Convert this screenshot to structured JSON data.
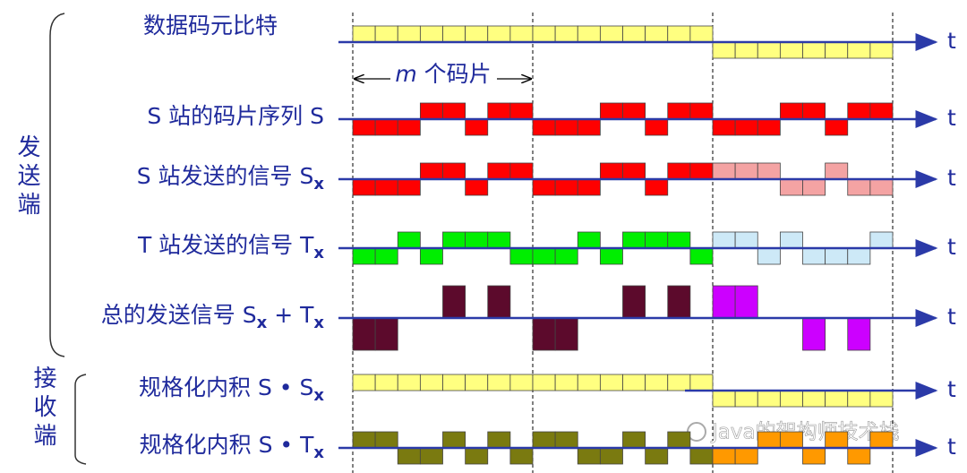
{
  "rows": [
    {
      "label": [
        "数据码元比特"
      ]
    },
    {
      "label": [
        "S 站的码片序列 S"
      ]
    },
    {
      "label": [
        "S 站发送的信号 S",
        "x"
      ]
    },
    {
      "label": [
        "T 站发送的信号 T",
        "x"
      ]
    },
    {
      "label": [
        "总的发送信号 S",
        "x",
        " + T",
        "x"
      ]
    },
    {
      "label": [
        "规格化内积 S • S",
        "x"
      ]
    },
    {
      "label": [
        "规格化内积 S • T",
        "x"
      ]
    }
  ],
  "chip_span": [
    "m",
    " 个码片"
  ],
  "axis_label": "t",
  "sender": "发送端",
  "receiver": "接收端",
  "watermark": "Java的架构师技术栈"
}
